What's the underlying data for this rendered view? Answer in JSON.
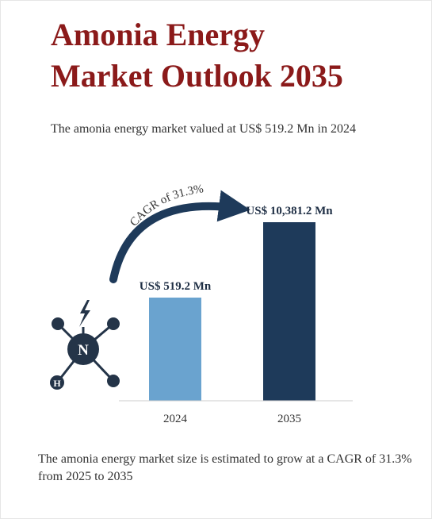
{
  "title_line1": "Amonia Energy",
  "title_line2": "Market Outlook 2035",
  "subtitle": "The amonia energy market valued at US$ 519.2 Mn in 2024",
  "footer_line1": "The amonia energy market size is estimated to grow at a CAGR of 31.3%",
  "footer_line2": "from 2025 to 2035",
  "icon": {
    "symbol_center": "N",
    "symbol_corner": "H",
    "name": "ammonia-molecule-icon"
  },
  "colors": {
    "title": "#8b1a1a",
    "bar_2024": "#6aa3cf",
    "bar_2035": "#1e3a5a",
    "arrow": "#1e3a5a",
    "icon": "#243448"
  },
  "chart_data": {
    "type": "bar",
    "categories": [
      "2024",
      "2035"
    ],
    "values": [
      519.2,
      10381.2
    ],
    "data_labels": [
      "US$ 519.2 Mn",
      "US$ 10,381.2 Mn"
    ],
    "annotation": "CAGR of 31.3%",
    "unit": "US$ Mn",
    "xlabel": "",
    "ylabel": "",
    "grid": false
  }
}
